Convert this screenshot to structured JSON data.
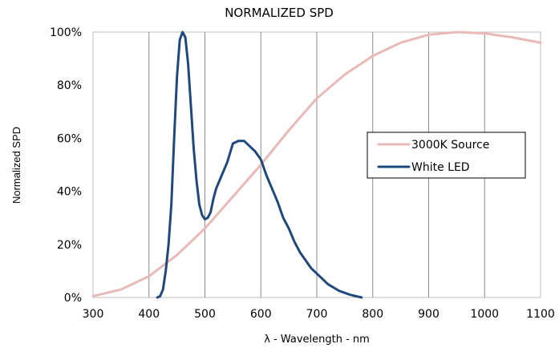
{
  "chart_data": {
    "type": "line",
    "title": "NORMALIZED SPD",
    "xlabel": "λ - Wavelength - nm",
    "ylabel": "Normalized SPD",
    "xlim": [
      300,
      1100
    ],
    "ylim": [
      0,
      100
    ],
    "x_ticks": [
      300,
      400,
      500,
      600,
      700,
      800,
      900,
      1000,
      1100
    ],
    "y_ticks": [
      0,
      20,
      40,
      60,
      80,
      100
    ],
    "x_tick_labels": [
      "300",
      "400",
      "500",
      "600",
      "700",
      "800",
      "900",
      "1000",
      "1100"
    ],
    "y_tick_labels": [
      "0%",
      "20%",
      "40%",
      "60%",
      "80%",
      "100%"
    ],
    "grid": {
      "vertical": true,
      "horizontal": false
    },
    "legend": {
      "position": "right-middle"
    },
    "series": [
      {
        "name": "3000K Source",
        "color": "#e8b9b6",
        "x": [
          300,
          350,
          400,
          450,
          500,
          550,
          600,
          650,
          700,
          750,
          800,
          850,
          900,
          950,
          1000,
          1050,
          1100
        ],
        "values": [
          0.5,
          3,
          8,
          16,
          26,
          38,
          50,
          63,
          75,
          84,
          91,
          96,
          99,
          100,
          99.5,
          98,
          96
        ]
      },
      {
        "name": "White LED",
        "color": "#1f497d",
        "x": [
          415,
          420,
          425,
          430,
          435,
          440,
          445,
          450,
          455,
          460,
          465,
          470,
          475,
          480,
          485,
          490,
          495,
          500,
          505,
          510,
          515,
          520,
          530,
          540,
          550,
          560,
          570,
          580,
          590,
          600,
          610,
          620,
          630,
          640,
          650,
          660,
          670,
          680,
          690,
          700,
          720,
          740,
          760,
          780
        ],
        "values": [
          0,
          0.5,
          3,
          10,
          20,
          35,
          60,
          83,
          97,
          100,
          98,
          88,
          72,
          56,
          44,
          35,
          31,
          29.5,
          30,
          32,
          37,
          41,
          46,
          51,
          58,
          59,
          59,
          57,
          55,
          52,
          46,
          41,
          36,
          30,
          26,
          21,
          17,
          14,
          11,
          9,
          5,
          2.5,
          1,
          0
        ]
      }
    ]
  }
}
